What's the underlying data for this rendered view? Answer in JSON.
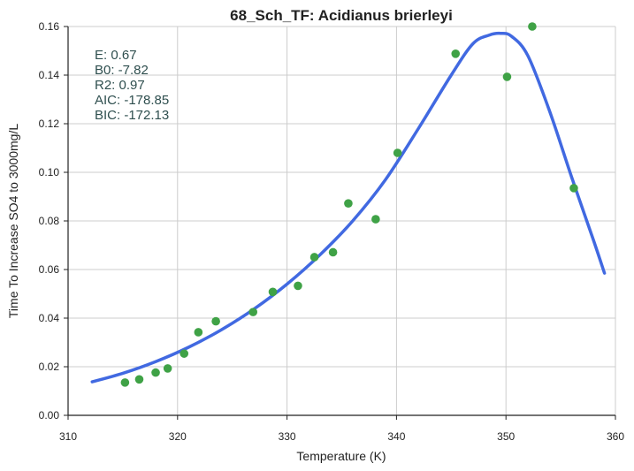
{
  "chart_data": {
    "type": "scatter",
    "title": "68_Sch_TF: Acidianus brierleyi",
    "xlabel": "Temperature (K)",
    "ylabel": "Time To Increase SO4 to 3000mg/L",
    "xlim": [
      310,
      360
    ],
    "ylim": [
      0.0,
      0.16
    ],
    "x_ticks": [
      "310",
      "320",
      "330",
      "340",
      "350",
      "360"
    ],
    "y_ticks": [
      "0.00",
      "0.02",
      "0.04",
      "0.06",
      "0.08",
      "0.10",
      "0.12",
      "0.14",
      "0.16"
    ],
    "grid": true,
    "stats": [
      "E:  0.67",
      "B0:  -7.82",
      "R2:  0.97",
      "AIC: -178.85",
      "BIC: -172.13"
    ],
    "series": [
      {
        "kind": "points",
        "color": "#3fa246",
        "x": [
          315.2,
          316.5,
          318.0,
          319.1,
          320.6,
          321.9,
          323.5,
          326.9,
          328.7,
          331.0,
          332.5,
          334.2,
          335.6,
          338.1,
          340.1,
          345.4,
          350.1,
          352.4,
          356.2
        ],
        "y": [
          0.0135,
          0.0148,
          0.0176,
          0.0193,
          0.0254,
          0.0342,
          0.0387,
          0.0425,
          0.0508,
          0.0533,
          0.0651,
          0.0671,
          0.0872,
          0.0807,
          0.108,
          0.1488,
          0.1393,
          0.16,
          0.0935
        ]
      },
      {
        "kind": "line",
        "color": "#4169e1",
        "x": [
          312.2,
          315,
          318,
          321,
          324,
          327,
          330,
          333,
          336,
          339,
          342,
          345,
          347,
          348.5,
          349.5,
          350.5,
          352,
          354,
          356,
          358,
          359
        ],
        "y": [
          0.0138,
          0.0173,
          0.0221,
          0.028,
          0.0352,
          0.0438,
          0.054,
          0.066,
          0.08,
          0.097,
          0.118,
          0.14,
          0.153,
          0.1565,
          0.1572,
          0.156,
          0.148,
          0.125,
          0.098,
          0.072,
          0.0585
        ]
      }
    ]
  }
}
